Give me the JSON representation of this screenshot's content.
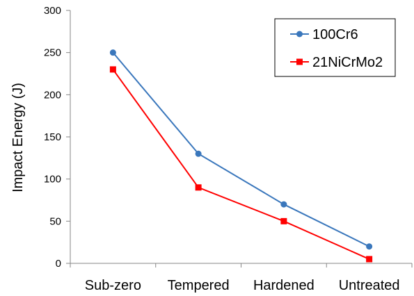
{
  "chart_data": {
    "type": "line",
    "title": "",
    "xlabel": "",
    "ylabel": "Impact Energy (J)",
    "categories": [
      "Sub-zero",
      "Tempered",
      "Hardened",
      "Untreated"
    ],
    "ylim": [
      0,
      300
    ],
    "yticks": [
      0,
      50,
      100,
      150,
      200,
      250,
      300
    ],
    "grid": false,
    "legend_position": "top-right",
    "series": [
      {
        "name": "100Cr6",
        "values": [
          250,
          130,
          70,
          20
        ],
        "color": "#3A77BC",
        "marker": "circle"
      },
      {
        "name": "21NiCrMo2",
        "values": [
          230,
          90,
          50,
          5
        ],
        "color": "#FF0000",
        "marker": "square"
      }
    ]
  }
}
